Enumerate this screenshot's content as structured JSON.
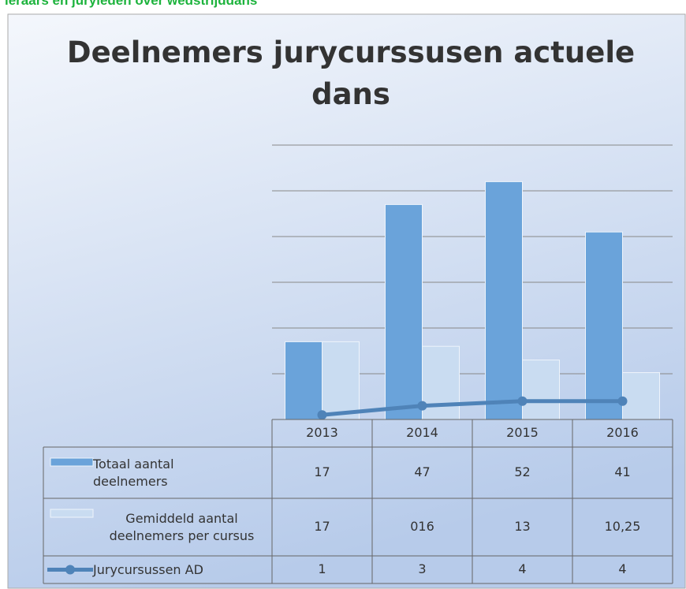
{
  "header": "leraars en juryleden over wedstrijddans",
  "chart_data": {
    "type": "bar-line",
    "title": "Deelnemers jurycurssusen actuele dans",
    "categories": [
      "2013",
      "2014",
      "2015",
      "2016"
    ],
    "series": [
      {
        "name": "Totaal aantal deelnemers",
        "type": "bar",
        "color": "#6aa3da",
        "values": [
          17,
          47,
          52,
          41
        ]
      },
      {
        "name": "Gemiddeld aantal deelnemers per cursus",
        "type": "bar",
        "color": "#c9dcf1",
        "values": [
          17,
          16,
          13,
          10.25
        ],
        "value_labels": [
          "17",
          "016",
          "13",
          "10,25"
        ]
      },
      {
        "name": "Jurycursussen AD",
        "type": "line",
        "color": "#4f83b8",
        "values": [
          1,
          3,
          4,
          4
        ]
      }
    ],
    "ylim": [
      0,
      60
    ],
    "yticks": [
      0,
      10,
      20,
      30,
      40,
      50,
      60
    ],
    "grid": true,
    "data_table": true
  }
}
